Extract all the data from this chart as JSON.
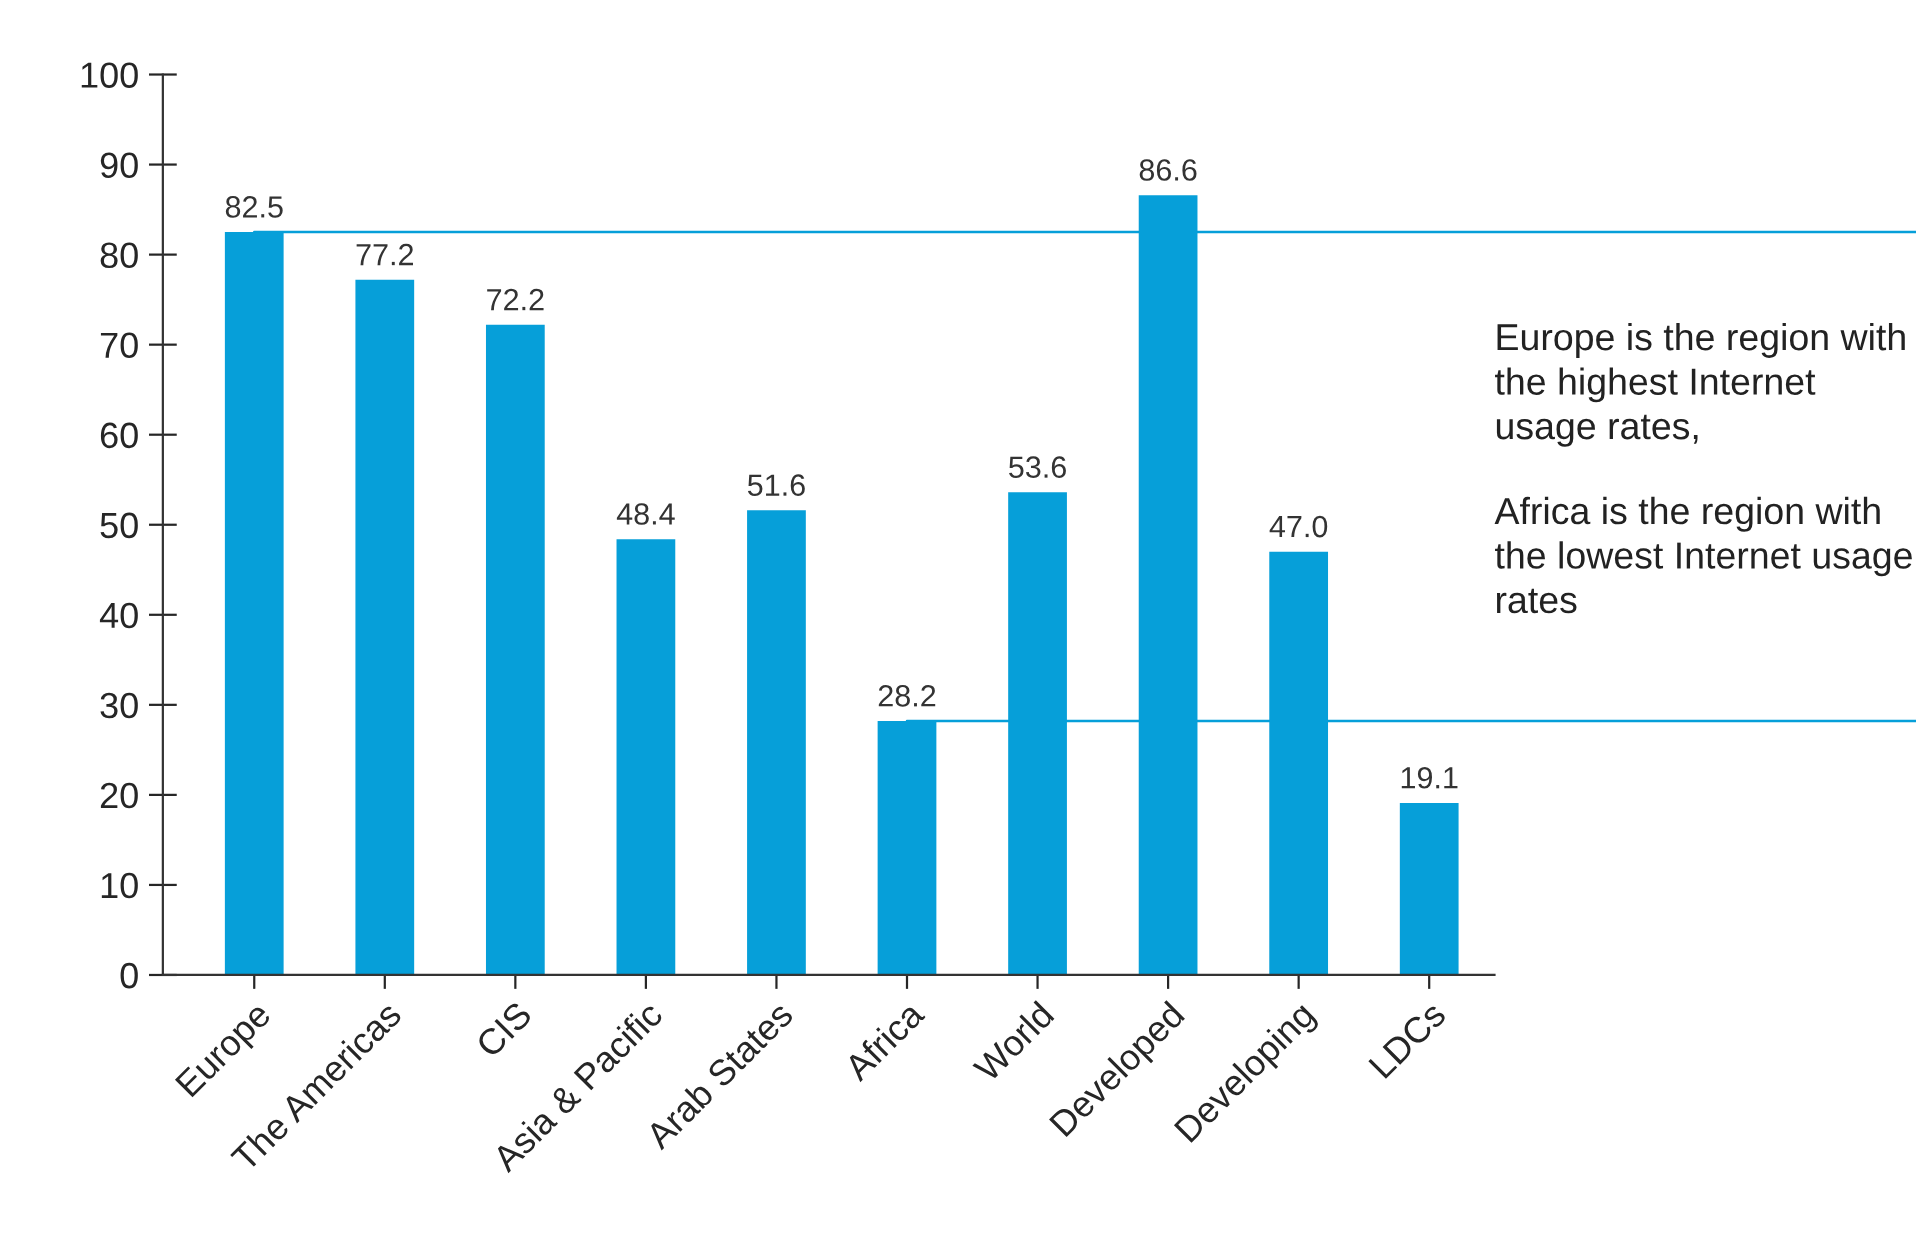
{
  "chart_data": {
    "type": "bar",
    "categories": [
      "Europe",
      "The Americas",
      "CIS",
      "Asia & Pacific",
      "Arab States",
      "Africa",
      "World",
      "Developed",
      "Developing",
      "LDCs"
    ],
    "values": [
      82.5,
      77.2,
      72.2,
      48.4,
      51.6,
      28.2,
      53.6,
      86.6,
      47.0,
      19.1
    ],
    "value_labels": [
      "82.5",
      "77.2",
      "72.2",
      "48.4",
      "51.6",
      "28.2",
      "53.6",
      "86.6",
      "47.0",
      "19.1"
    ],
    "color": "#069fd9",
    "ylim": [
      0,
      100
    ],
    "yticks": [
      0,
      10,
      20,
      30,
      40,
      50,
      60,
      70,
      80,
      90,
      100
    ],
    "grid": false,
    "ref_lines": [
      {
        "axis": "y",
        "value": 82.5,
        "color": "#069fd9"
      },
      {
        "axis": "y",
        "value": 28.2,
        "color": "#069fd9"
      }
    ],
    "annotations": [
      "Europe is the region with the highest Internet usage rates,",
      "Africa is the region with the lowest Internet usage rates"
    ]
  }
}
